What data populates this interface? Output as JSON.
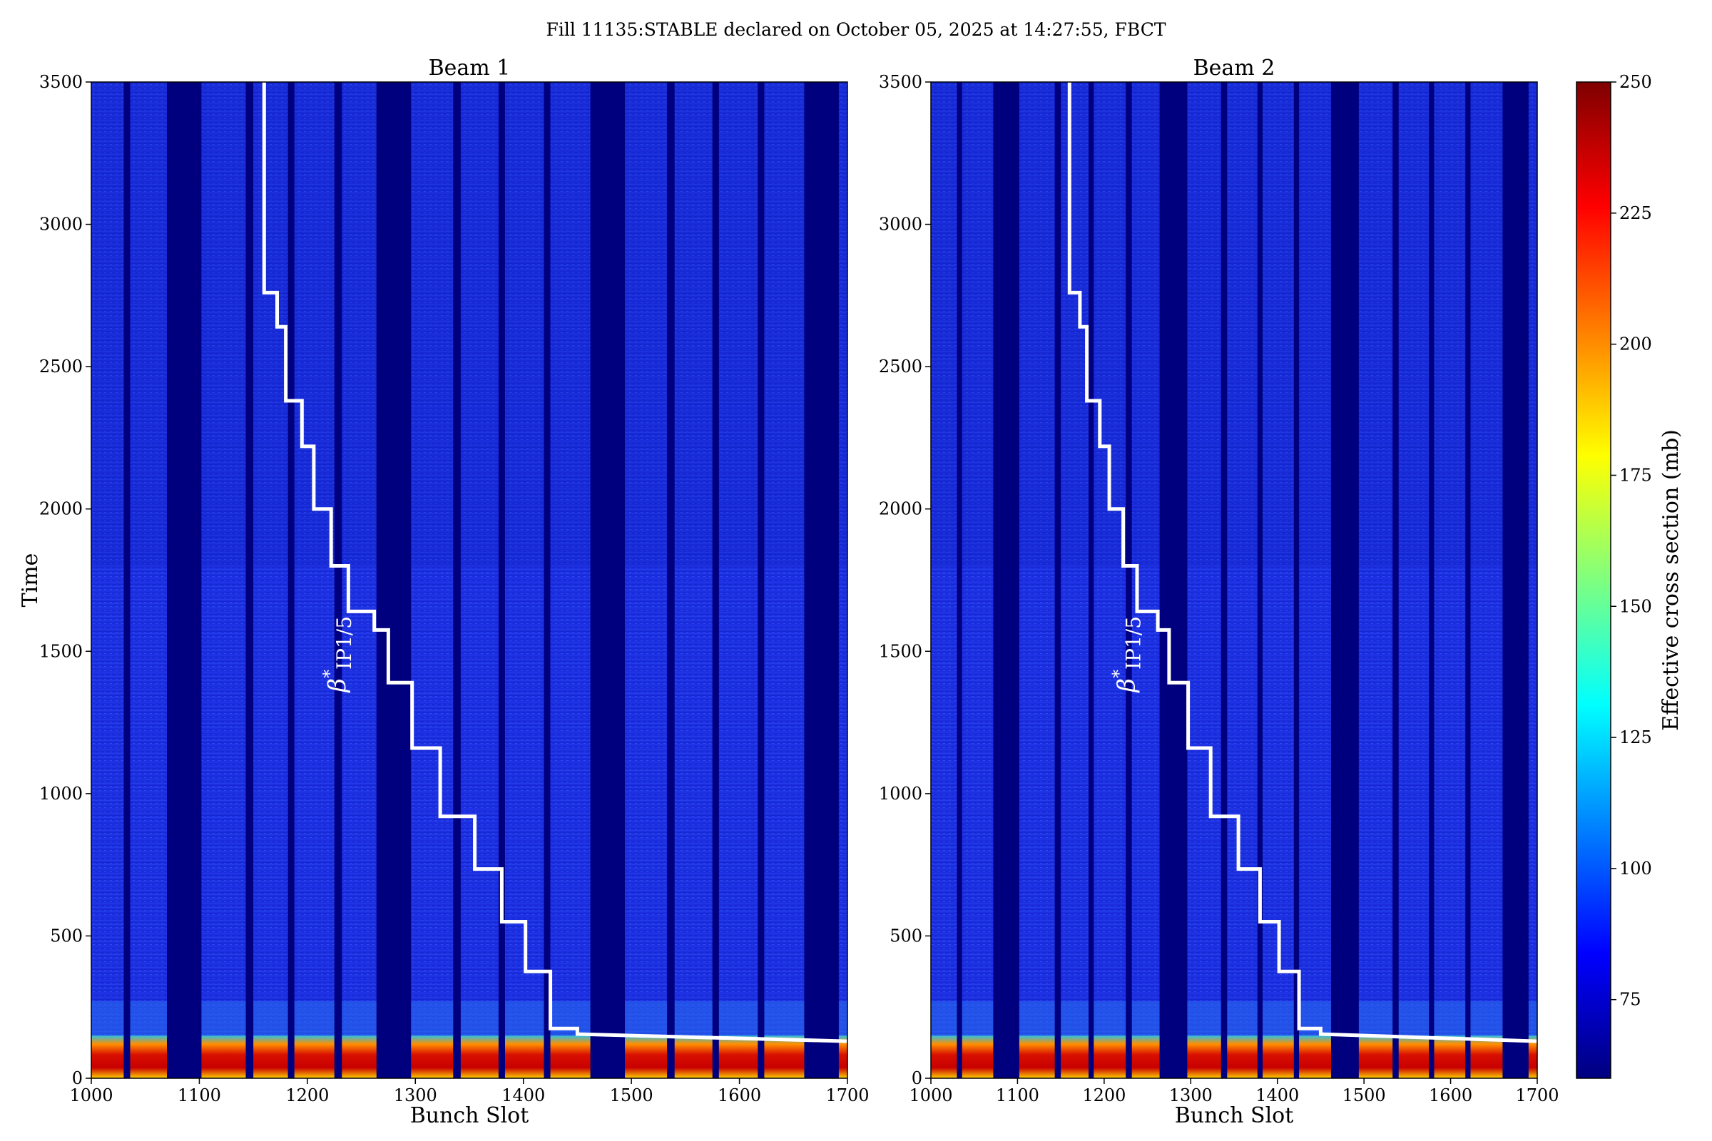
{
  "chart_data": {
    "type": "heatmap",
    "title": "Fill 11135:STABLE declared on October 05, 2025 at 14:27:55, FBCT",
    "colorbar": {
      "label": "Effective cross section (mb)",
      "range": [
        60,
        250
      ],
      "ticks": [
        75,
        100,
        125,
        150,
        175,
        200,
        225,
        250
      ],
      "colormap": "jet"
    },
    "panels": [
      {
        "name": "Beam 1",
        "xlabel": "Bunch Slot",
        "ylabel": "Time",
        "xlim": [
          1000,
          1700
        ],
        "ylim": [
          0,
          3500
        ],
        "xticks": [
          1000,
          1100,
          1200,
          1300,
          1400,
          1500,
          1600,
          1700
        ],
        "yticks": [
          0,
          500,
          1000,
          1500,
          2000,
          2500,
          3000,
          3500
        ],
        "empty_slot_bands": [
          [
            1030,
            1036
          ],
          [
            1070,
            1102
          ],
          [
            1143,
            1150
          ],
          [
            1182,
            1188
          ],
          [
            1225,
            1232
          ],
          [
            1264,
            1296
          ],
          [
            1335,
            1342
          ],
          [
            1377,
            1383
          ],
          [
            1419,
            1425
          ],
          [
            1462,
            1494
          ],
          [
            1533,
            1540
          ],
          [
            1575,
            1581
          ],
          [
            1617,
            1623
          ],
          [
            1660,
            1692
          ]
        ],
        "high_band_time": [
          0,
          150
        ],
        "annotation": "β*IP1/5",
        "beta_star_steps": [
          {
            "slot": 1160,
            "time": 3500
          },
          {
            "slot": 1160,
            "time": 2760
          },
          {
            "slot": 1172,
            "time": 2760
          },
          {
            "slot": 1172,
            "time": 2640
          },
          {
            "slot": 1180,
            "time": 2640
          },
          {
            "slot": 1180,
            "time": 2380
          },
          {
            "slot": 1195,
            "time": 2380
          },
          {
            "slot": 1195,
            "time": 2220
          },
          {
            "slot": 1206,
            "time": 2220
          },
          {
            "slot": 1206,
            "time": 2000
          },
          {
            "slot": 1222,
            "time": 2000
          },
          {
            "slot": 1222,
            "time": 1800
          },
          {
            "slot": 1238,
            "time": 1800
          },
          {
            "slot": 1238,
            "time": 1640
          },
          {
            "slot": 1262,
            "time": 1640
          },
          {
            "slot": 1262,
            "time": 1575
          },
          {
            "slot": 1275,
            "time": 1575
          },
          {
            "slot": 1275,
            "time": 1390
          },
          {
            "slot": 1297,
            "time": 1390
          },
          {
            "slot": 1297,
            "time": 1160
          },
          {
            "slot": 1323,
            "time": 1160
          },
          {
            "slot": 1323,
            "time": 920
          },
          {
            "slot": 1355,
            "time": 920
          },
          {
            "slot": 1355,
            "time": 735
          },
          {
            "slot": 1380,
            "time": 735
          },
          {
            "slot": 1380,
            "time": 550
          },
          {
            "slot": 1402,
            "time": 550
          },
          {
            "slot": 1402,
            "time": 375
          },
          {
            "slot": 1425,
            "time": 375
          },
          {
            "slot": 1425,
            "time": 175
          },
          {
            "slot": 1450,
            "time": 175
          },
          {
            "slot": 1450,
            "time": 155
          },
          {
            "slot": 1700,
            "time": 130
          }
        ]
      },
      {
        "name": "Beam 2",
        "xlabel": "Bunch Slot",
        "ylabel": "",
        "xlim": [
          1000,
          1700
        ],
        "ylim": [
          0,
          3500
        ],
        "xticks": [
          1000,
          1100,
          1200,
          1300,
          1400,
          1500,
          1600,
          1700
        ],
        "yticks": [
          0,
          500,
          1000,
          1500,
          2000,
          2500,
          3000,
          3500
        ],
        "empty_slot_bands": [
          [
            1030,
            1036
          ],
          [
            1072,
            1102
          ],
          [
            1143,
            1150
          ],
          [
            1182,
            1188
          ],
          [
            1225,
            1232
          ],
          [
            1264,
            1296
          ],
          [
            1335,
            1342
          ],
          [
            1377,
            1383
          ],
          [
            1419,
            1425
          ],
          [
            1462,
            1494
          ],
          [
            1533,
            1540
          ],
          [
            1575,
            1581
          ],
          [
            1617,
            1623
          ],
          [
            1660,
            1690
          ]
        ],
        "high_band_time": [
          0,
          150
        ],
        "annotation": "β*IP1/5",
        "beta_star_steps": [
          {
            "slot": 1160,
            "time": 3500
          },
          {
            "slot": 1160,
            "time": 2760
          },
          {
            "slot": 1172,
            "time": 2760
          },
          {
            "slot": 1172,
            "time": 2640
          },
          {
            "slot": 1180,
            "time": 2640
          },
          {
            "slot": 1180,
            "time": 2380
          },
          {
            "slot": 1195,
            "time": 2380
          },
          {
            "slot": 1195,
            "time": 2220
          },
          {
            "slot": 1206,
            "time": 2220
          },
          {
            "slot": 1206,
            "time": 2000
          },
          {
            "slot": 1222,
            "time": 2000
          },
          {
            "slot": 1222,
            "time": 1800
          },
          {
            "slot": 1238,
            "time": 1800
          },
          {
            "slot": 1238,
            "time": 1640
          },
          {
            "slot": 1262,
            "time": 1640
          },
          {
            "slot": 1262,
            "time": 1575
          },
          {
            "slot": 1275,
            "time": 1575
          },
          {
            "slot": 1275,
            "time": 1390
          },
          {
            "slot": 1297,
            "time": 1390
          },
          {
            "slot": 1297,
            "time": 1160
          },
          {
            "slot": 1323,
            "time": 1160
          },
          {
            "slot": 1323,
            "time": 920
          },
          {
            "slot": 1355,
            "time": 920
          },
          {
            "slot": 1355,
            "time": 735
          },
          {
            "slot": 1380,
            "time": 735
          },
          {
            "slot": 1380,
            "time": 550
          },
          {
            "slot": 1402,
            "time": 550
          },
          {
            "slot": 1402,
            "time": 375
          },
          {
            "slot": 1425,
            "time": 375
          },
          {
            "slot": 1425,
            "time": 175
          },
          {
            "slot": 1450,
            "time": 175
          },
          {
            "slot": 1450,
            "time": 155
          },
          {
            "slot": 1700,
            "time": 130
          }
        ]
      }
    ]
  },
  "colors": {
    "background": "#ffffff",
    "empty_slot": "#00007f",
    "base_cross_section": "#1c2ee0",
    "step_line": "#ffffff"
  }
}
